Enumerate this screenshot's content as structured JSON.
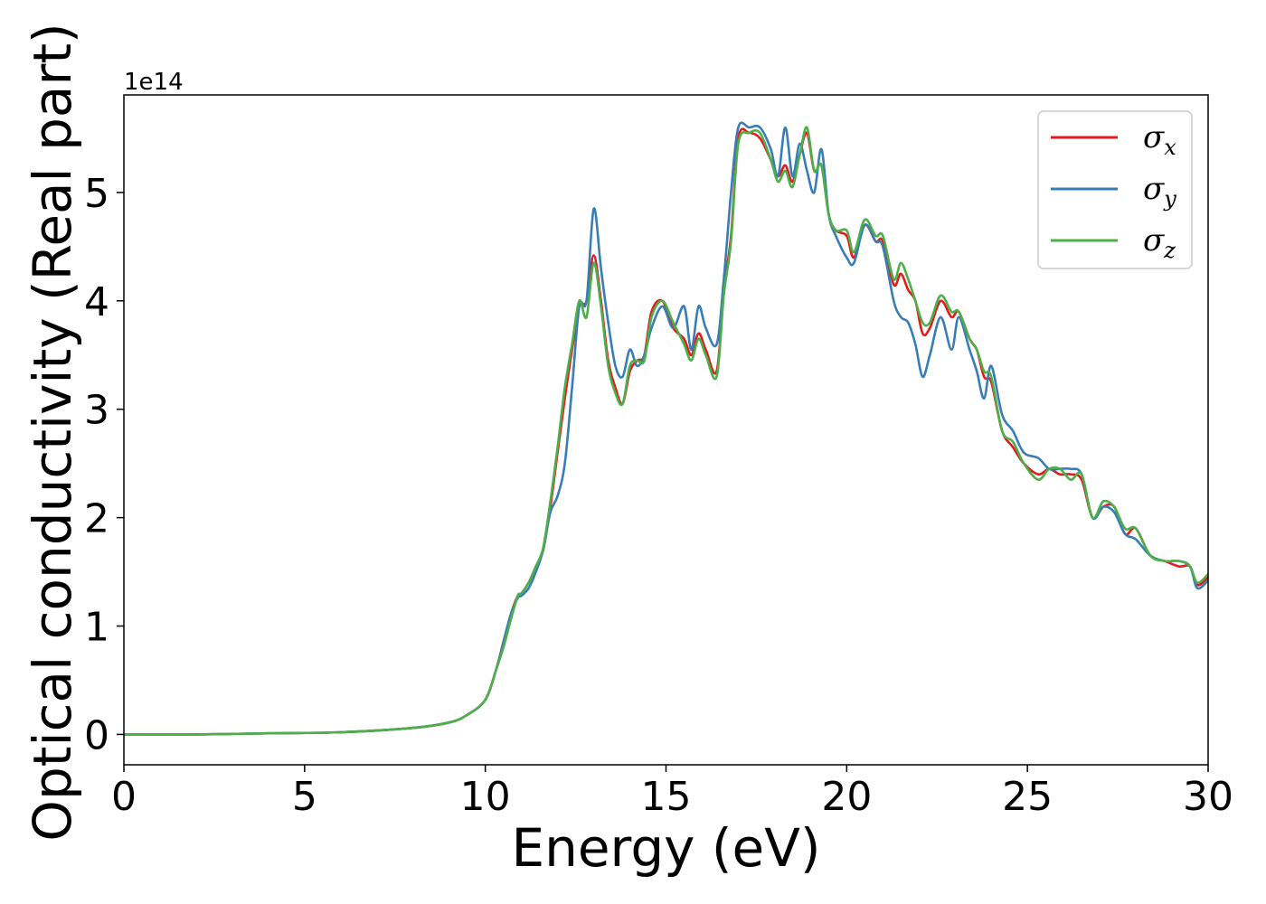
{
  "chart_data": {
    "type": "line",
    "title": "",
    "xlabel": "Energy (eV)",
    "ylabel": "Optical conductivity (Real part)",
    "y_offset_label": "1e14",
    "xlim": [
      0,
      30
    ],
    "ylim": [
      -0.28,
      5.9
    ],
    "x_ticks": [
      0,
      5,
      10,
      15,
      20,
      25,
      30
    ],
    "y_ticks": [
      0,
      1,
      2,
      3,
      4,
      5
    ],
    "grid": false,
    "legend_position": "top-right",
    "series": [
      {
        "name": "σx",
        "symbol": "σ",
        "subscript": "x",
        "color": "#e41a1c",
        "x": [
          0,
          2,
          4,
          6,
          8,
          9,
          9.5,
          10,
          10.3,
          10.5,
          10.7,
          10.9,
          11.0,
          11.2,
          11.4,
          11.6,
          11.8,
          12.0,
          12.2,
          12.4,
          12.6,
          12.8,
          13.0,
          13.2,
          13.4,
          13.6,
          13.8,
          14.0,
          14.2,
          14.4,
          14.6,
          14.9,
          15.2,
          15.5,
          15.7,
          15.9,
          16.1,
          16.4,
          16.6,
          16.8,
          17.0,
          17.3,
          17.6,
          17.9,
          18.1,
          18.3,
          18.5,
          18.7,
          18.9,
          19.1,
          19.3,
          19.5,
          19.7,
          20.0,
          20.2,
          20.5,
          20.8,
          21.0,
          21.3,
          21.5,
          21.7,
          21.9,
          22.1,
          22.3,
          22.6,
          22.9,
          23.1,
          23.4,
          23.6,
          23.8,
          24.0,
          24.3,
          24.6,
          24.9,
          25.3,
          25.6,
          25.9,
          26.2,
          26.5,
          26.8,
          27.1,
          27.4,
          27.7,
          28.0,
          28.4,
          28.8,
          29.2,
          29.5,
          29.7,
          30.0
        ],
        "values": [
          0,
          0.0,
          0.01,
          0.02,
          0.06,
          0.11,
          0.18,
          0.32,
          0.6,
          0.85,
          1.1,
          1.28,
          1.3,
          1.4,
          1.55,
          1.7,
          2.1,
          2.6,
          3.1,
          3.55,
          3.95,
          4.0,
          4.42,
          4.0,
          3.45,
          3.2,
          3.05,
          3.35,
          3.45,
          3.5,
          3.9,
          4.0,
          3.75,
          3.65,
          3.5,
          3.7,
          3.55,
          3.35,
          4.1,
          4.6,
          5.5,
          5.55,
          5.5,
          5.3,
          5.15,
          5.25,
          5.1,
          5.35,
          5.55,
          5.2,
          5.25,
          4.8,
          4.65,
          4.6,
          4.4,
          4.7,
          4.55,
          4.55,
          4.15,
          4.25,
          4.1,
          4.0,
          3.7,
          3.75,
          4.0,
          3.85,
          3.9,
          3.65,
          3.55,
          3.3,
          3.25,
          2.8,
          2.65,
          2.5,
          2.4,
          2.45,
          2.4,
          2.4,
          2.35,
          2.0,
          2.1,
          2.1,
          1.85,
          1.9,
          1.65,
          1.6,
          1.55,
          1.55,
          1.38,
          1.45
        ]
      },
      {
        "name": "σy",
        "symbol": "σ",
        "subscript": "y",
        "color": "#377eb8",
        "x": [
          0,
          2,
          4,
          6,
          8,
          9,
          9.5,
          10,
          10.3,
          10.5,
          10.7,
          10.9,
          11.0,
          11.2,
          11.4,
          11.6,
          11.8,
          12.0,
          12.2,
          12.4,
          12.6,
          12.8,
          13.0,
          13.2,
          13.4,
          13.6,
          13.8,
          14.0,
          14.2,
          14.4,
          14.6,
          14.9,
          15.2,
          15.5,
          15.7,
          15.9,
          16.1,
          16.4,
          16.6,
          16.8,
          17.0,
          17.3,
          17.6,
          17.9,
          18.1,
          18.3,
          18.5,
          18.7,
          18.9,
          19.1,
          19.3,
          19.5,
          19.7,
          20.0,
          20.2,
          20.5,
          20.8,
          21.0,
          21.3,
          21.5,
          21.7,
          21.9,
          22.1,
          22.3,
          22.6,
          22.9,
          23.1,
          23.4,
          23.6,
          23.8,
          24.0,
          24.3,
          24.6,
          24.9,
          25.3,
          25.6,
          25.9,
          26.2,
          26.5,
          26.8,
          27.1,
          27.4,
          27.7,
          28.0,
          28.4,
          28.8,
          29.2,
          29.5,
          29.7,
          30.0
        ],
        "values": [
          0,
          0.0,
          0.01,
          0.02,
          0.06,
          0.11,
          0.18,
          0.32,
          0.6,
          0.85,
          1.1,
          1.26,
          1.28,
          1.35,
          1.5,
          1.7,
          2.05,
          2.2,
          2.5,
          3.2,
          3.95,
          4.0,
          4.85,
          4.3,
          3.8,
          3.4,
          3.3,
          3.55,
          3.4,
          3.5,
          3.75,
          3.95,
          3.75,
          3.95,
          3.55,
          3.95,
          3.75,
          3.6,
          4.2,
          5.0,
          5.6,
          5.6,
          5.6,
          5.4,
          5.15,
          5.6,
          5.15,
          5.45,
          5.2,
          5.0,
          5.4,
          4.8,
          4.6,
          4.4,
          4.35,
          4.7,
          4.55,
          4.5,
          4.0,
          3.85,
          3.8,
          3.6,
          3.3,
          3.5,
          3.85,
          3.55,
          3.85,
          3.55,
          3.35,
          3.1,
          3.4,
          2.95,
          2.8,
          2.6,
          2.55,
          2.45,
          2.45,
          2.45,
          2.4,
          2.0,
          2.1,
          2.05,
          1.85,
          1.8,
          1.65,
          1.6,
          1.6,
          1.55,
          1.35,
          1.42
        ]
      },
      {
        "name": "σz",
        "symbol": "σ",
        "subscript": "z",
        "color": "#4daf4a",
        "x": [
          0,
          2,
          4,
          6,
          8,
          9,
          9.5,
          10,
          10.3,
          10.5,
          10.7,
          10.9,
          11.0,
          11.2,
          11.4,
          11.6,
          11.8,
          12.0,
          12.2,
          12.4,
          12.6,
          12.8,
          13.0,
          13.2,
          13.4,
          13.6,
          13.8,
          14.0,
          14.2,
          14.4,
          14.6,
          14.9,
          15.2,
          15.5,
          15.7,
          15.9,
          16.1,
          16.4,
          16.6,
          16.8,
          17.0,
          17.3,
          17.6,
          17.9,
          18.1,
          18.3,
          18.5,
          18.7,
          18.9,
          19.1,
          19.3,
          19.5,
          19.7,
          20.0,
          20.2,
          20.5,
          20.8,
          21.0,
          21.3,
          21.5,
          21.7,
          21.9,
          22.1,
          22.3,
          22.6,
          22.9,
          23.1,
          23.4,
          23.6,
          23.8,
          24.0,
          24.3,
          24.6,
          24.9,
          25.3,
          25.6,
          25.9,
          26.2,
          26.5,
          26.8,
          27.1,
          27.4,
          27.7,
          28.0,
          28.4,
          28.8,
          29.2,
          29.5,
          29.7,
          30.0
        ],
        "values": [
          0,
          0.0,
          0.01,
          0.02,
          0.06,
          0.11,
          0.18,
          0.32,
          0.6,
          0.8,
          1.05,
          1.28,
          1.3,
          1.4,
          1.55,
          1.72,
          2.15,
          2.65,
          3.2,
          3.6,
          4.0,
          3.85,
          4.35,
          3.95,
          3.4,
          3.15,
          3.05,
          3.4,
          3.45,
          3.45,
          3.85,
          4.0,
          3.8,
          3.6,
          3.45,
          3.65,
          3.5,
          3.3,
          4.05,
          4.55,
          5.45,
          5.55,
          5.55,
          5.3,
          5.1,
          5.2,
          5.05,
          5.35,
          5.6,
          5.2,
          5.25,
          4.8,
          4.65,
          4.65,
          4.45,
          4.75,
          4.6,
          4.6,
          4.2,
          4.35,
          4.2,
          4.0,
          3.8,
          3.8,
          4.05,
          3.9,
          3.9,
          3.65,
          3.55,
          3.35,
          3.3,
          2.8,
          2.7,
          2.5,
          2.35,
          2.45,
          2.45,
          2.35,
          2.4,
          2.0,
          2.15,
          2.1,
          1.9,
          1.9,
          1.65,
          1.6,
          1.6,
          1.55,
          1.4,
          1.48
        ]
      }
    ]
  }
}
